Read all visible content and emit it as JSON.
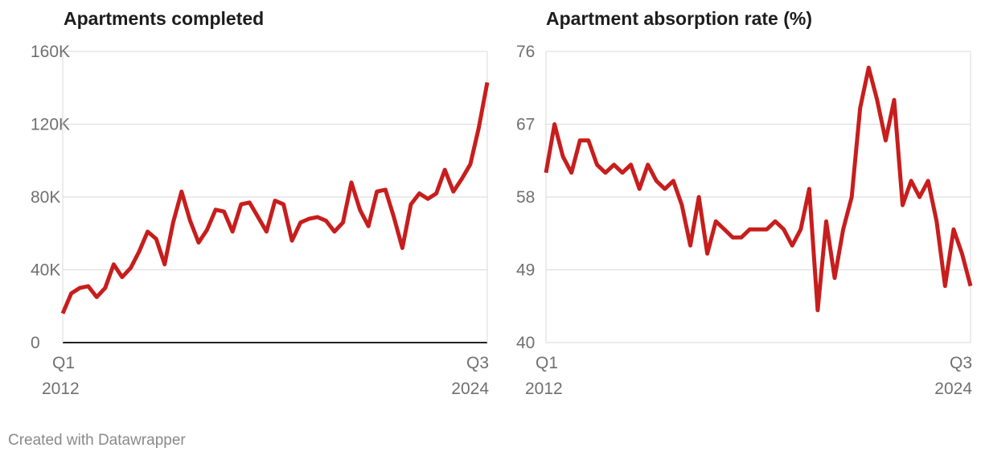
{
  "credit": "Created with Datawrapper",
  "colors": {
    "line": "#c71e1d",
    "grid": "#e0e0e0",
    "baseline": "#222222",
    "tick_text": "#707070"
  },
  "chart_data": [
    {
      "type": "line",
      "title": "Apartments completed",
      "xlabel": "",
      "ylabel": "",
      "x_tick_labels": [
        {
          "quarter": "Q1",
          "year": "2012"
        },
        {
          "quarter": "Q3",
          "year": "2024"
        }
      ],
      "y_ticks": [
        0,
        40000,
        80000,
        120000,
        160000
      ],
      "y_tick_labels": [
        "0",
        "40K",
        "80K",
        "120K",
        "160K"
      ],
      "ylim": [
        0,
        160000
      ],
      "grid": true,
      "legend": "none",
      "series": [
        {
          "values": [
            16000,
            27000,
            30000,
            31000,
            25000,
            30000,
            43000,
            36000,
            41000,
            50000,
            61000,
            57000,
            43000,
            66000,
            83000,
            67000,
            55000,
            62000,
            73000,
            72000,
            61000,
            76000,
            77000,
            69000,
            61000,
            78000,
            76000,
            56000,
            66000,
            68000,
            69000,
            67000,
            61000,
            66000,
            88000,
            73000,
            64000,
            83000,
            84000,
            69000,
            52000,
            76000,
            82000,
            79000,
            82000,
            95000,
            83000,
            90000,
            98000,
            118000,
            143000
          ]
        }
      ]
    },
    {
      "type": "line",
      "title": "Apartment absorption rate (%)",
      "xlabel": "",
      "ylabel": "",
      "x_tick_labels": [
        {
          "quarter": "Q1",
          "year": "2012"
        },
        {
          "quarter": "Q3",
          "year": "2024"
        }
      ],
      "y_ticks": [
        40,
        49,
        58,
        67,
        76
      ],
      "y_tick_labels": [
        "40",
        "49",
        "58",
        "67",
        "76"
      ],
      "ylim": [
        40,
        76
      ],
      "grid": true,
      "legend": "none",
      "series": [
        {
          "values": [
            61,
            67,
            63,
            61,
            65,
            65,
            62,
            61,
            62,
            61,
            62,
            59,
            62,
            60,
            59,
            60,
            57,
            52,
            58,
            51,
            55,
            54,
            53,
            53,
            54,
            54,
            54,
            55,
            54,
            52,
            54,
            59,
            44,
            55,
            48,
            54,
            58,
            69,
            74,
            70,
            65,
            70,
            57,
            60,
            58,
            60,
            55,
            47,
            54,
            51,
            47
          ]
        }
      ]
    }
  ]
}
